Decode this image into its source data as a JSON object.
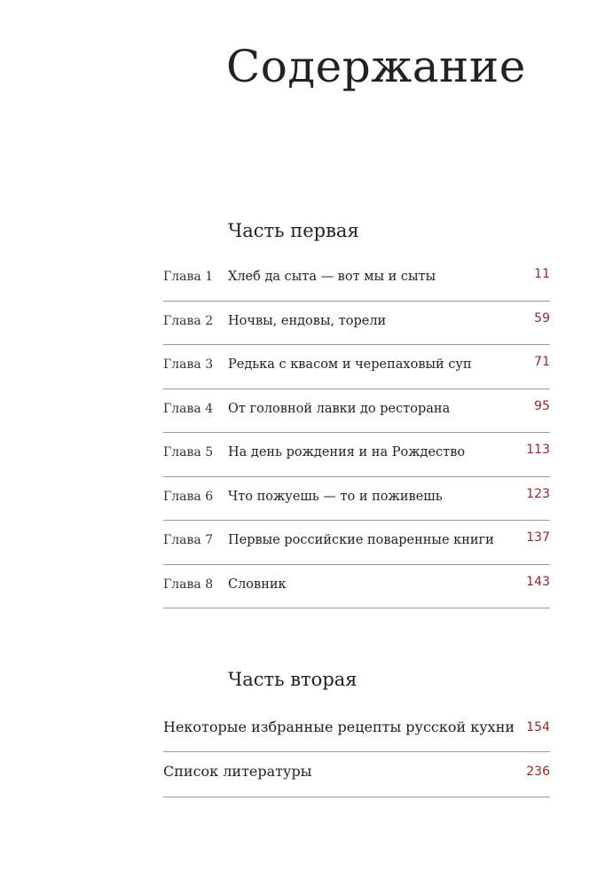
{
  "title": "Содержание",
  "part1": {
    "heading": "Часть первая",
    "items": [
      {
        "chapter": "Глава 1",
        "title": "Хлеб да сыта — вот мы и сыты",
        "page": "11"
      },
      {
        "chapter": "Глава 2",
        "title": "Ночвы, ендовы, торели",
        "page": "59"
      },
      {
        "chapter": "Глава 3",
        "title": "Редька с квасом и черепаховый суп",
        "page": "71"
      },
      {
        "chapter": "Глава 4",
        "title": "От головной лавки до ресторана",
        "page": "95"
      },
      {
        "chapter": "Глава 5",
        "title": "На день рождения и на Рождество",
        "page": "113"
      },
      {
        "chapter": "Глава 6",
        "title": "Что пожуешь — то и поживешь",
        "page": "123"
      },
      {
        "chapter": "Глава 7",
        "title": "Первые российские поваренные книги",
        "page": "137"
      },
      {
        "chapter": "Глава 8",
        "title": "Словник",
        "page": "143"
      }
    ]
  },
  "part2": {
    "heading": "Часть вторая",
    "items": [
      {
        "title": "Некоторые избранные рецепты русской кухни",
        "page": "154"
      },
      {
        "title": "Список литературы",
        "page": "236"
      }
    ]
  },
  "colors": {
    "page_number": "#8b2b2b",
    "text": "#222222",
    "rule": "#9a9a9a"
  }
}
